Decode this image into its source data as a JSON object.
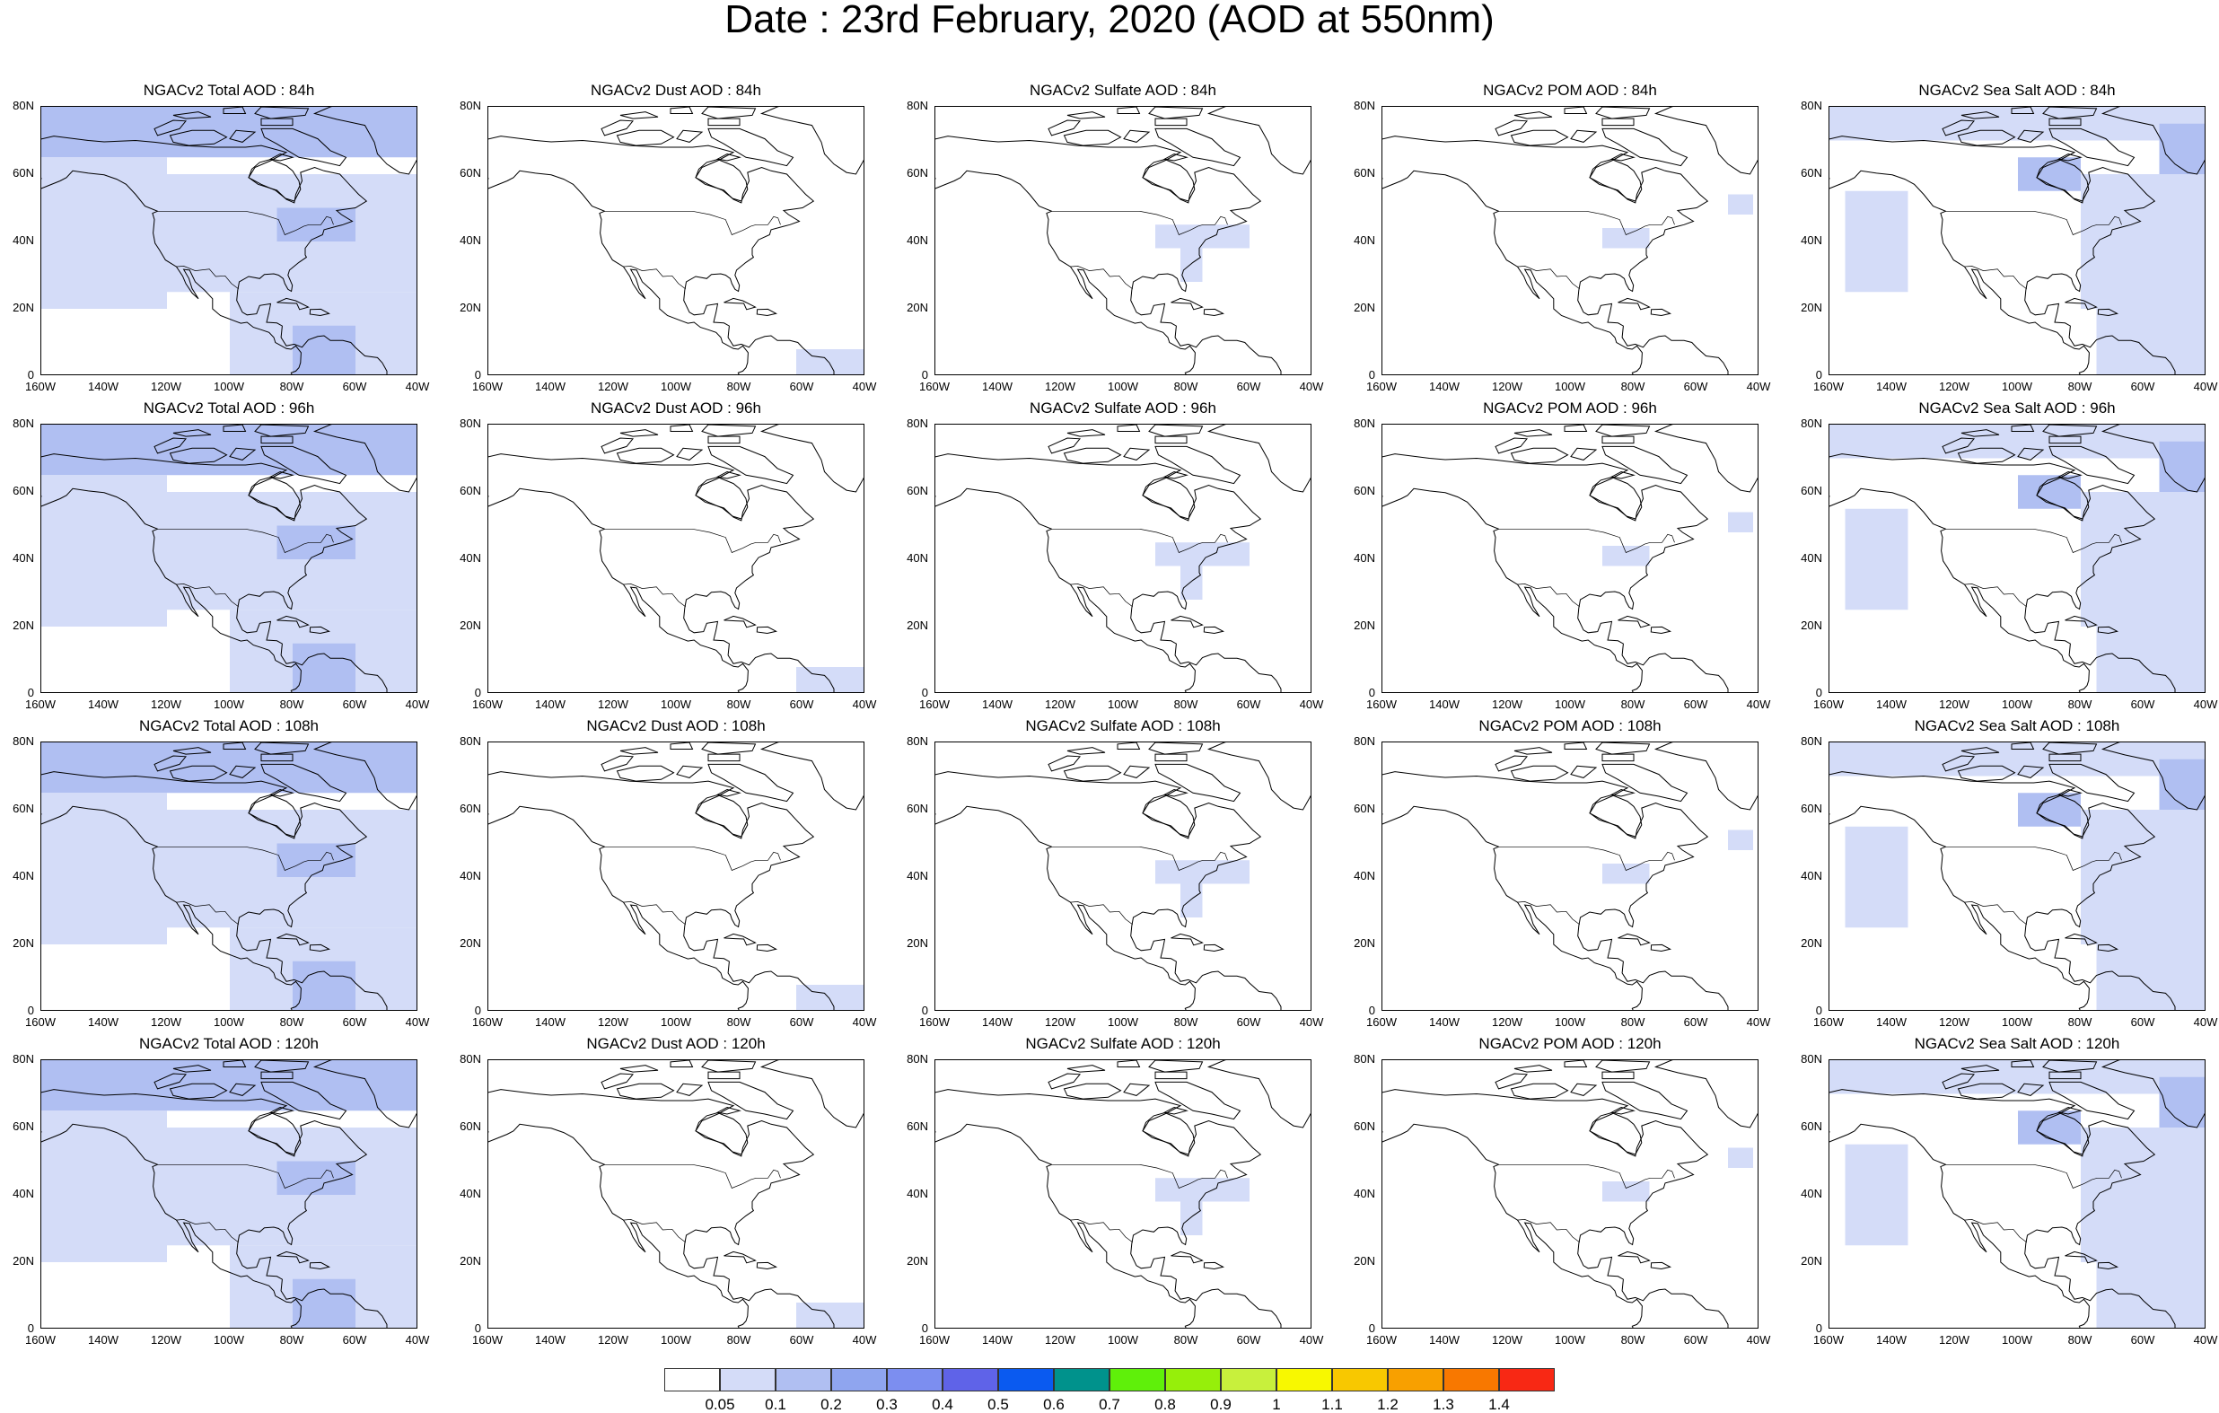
{
  "title": "Date : 23rd February, 2020 (AOD at 550nm)",
  "columns": [
    "Total",
    "Dust",
    "Sulfate",
    "POM",
    "Sea Salt"
  ],
  "rows": [
    "84h",
    "96h",
    "108h",
    "120h"
  ],
  "panels": [
    [
      "NGACv2 Total AOD : 84h",
      "NGACv2 Dust AOD : 84h",
      "NGACv2 Sulfate AOD : 84h",
      "NGACv2 POM AOD : 84h",
      "NGACv2 Sea Salt AOD : 84h"
    ],
    [
      "NGACv2 Total AOD : 96h",
      "NGACv2 Dust AOD : 96h",
      "NGACv2 Sulfate AOD : 96h",
      "NGACv2 POM AOD : 96h",
      "NGACv2 Sea Salt AOD : 96h"
    ],
    [
      "NGACv2 Total AOD : 108h",
      "NGACv2 Dust AOD : 108h",
      "NGACv2 Sulfate AOD : 108h",
      "NGACv2 POM AOD : 108h",
      "NGACv2 Sea Salt AOD : 108h"
    ],
    [
      "NGACv2 Total AOD : 120h",
      "NGACv2 Dust AOD : 120h",
      "NGACv2 Sulfate AOD : 120h",
      "NGACv2 POM AOD : 120h",
      "NGACv2 Sea Salt  AOD : 120h"
    ]
  ],
  "lat_ticks": [
    "80N",
    "60N",
    "40N",
    "20N",
    "0"
  ],
  "lon_ticks": [
    "160W",
    "140W",
    "120W",
    "100W",
    "80W",
    "60W",
    "40W"
  ],
  "map_extent": {
    "lon": [
      -160,
      -40
    ],
    "lat": [
      0,
      80
    ]
  },
  "colorbar": {
    "colors": [
      "#ffffff",
      "#d4dcf8",
      "#b0bff2",
      "#8fa5ef",
      "#7c8ef0",
      "#5f63e8",
      "#0a5af0",
      "#00928c",
      "#5ff00a",
      "#96ef0a",
      "#c8f03c",
      "#f8f800",
      "#f8c800",
      "#f8a000",
      "#f87800",
      "#f82814"
    ],
    "labels": [
      "0.05",
      "0.1",
      "0.2",
      "0.3",
      "0.4",
      "0.5",
      "0.6",
      "0.7",
      "0.8",
      "0.9",
      "1",
      "1.1",
      "1.2",
      "1.3",
      "1.4"
    ]
  },
  "aod_level_by_species": {
    "Total": 0.2,
    "Dust": 0.05,
    "Sulfate": 0.05,
    "POM": 0.05,
    "Sea Salt": 0.1
  }
}
